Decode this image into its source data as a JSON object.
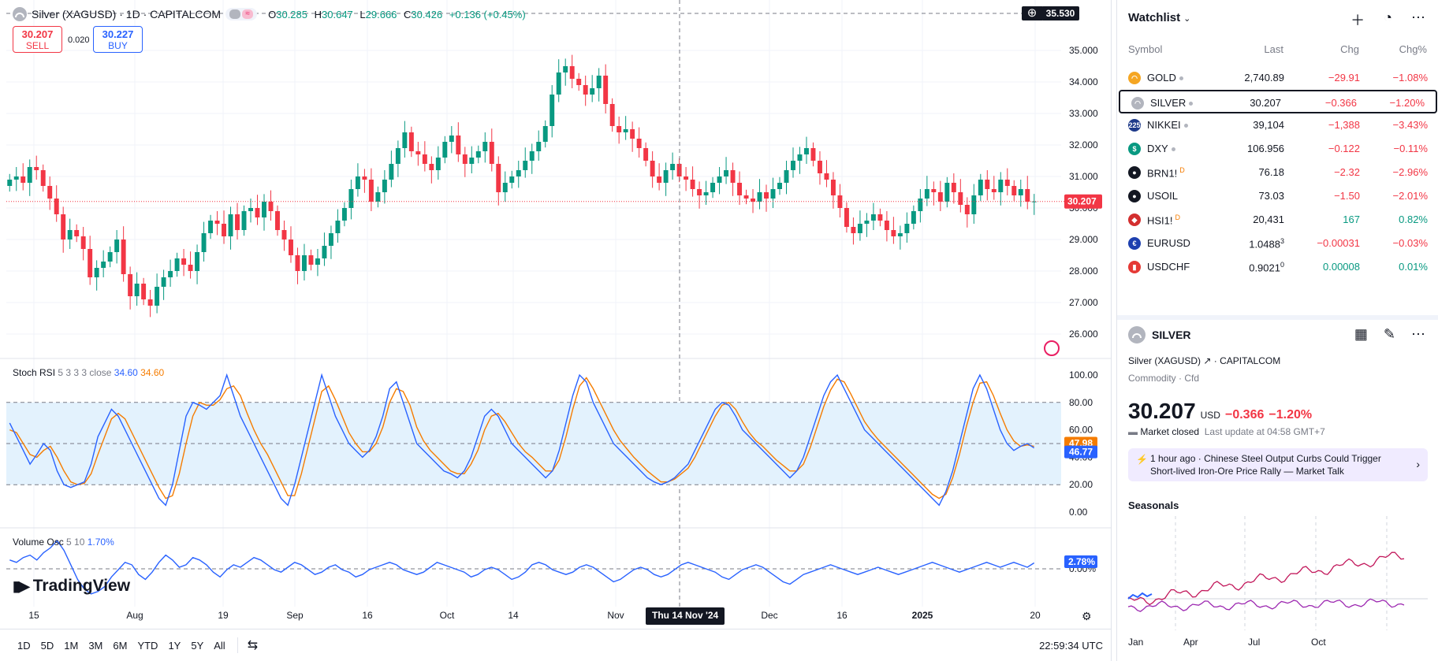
{
  "header": {
    "title": "Silver (XAGUSD) · 1D · CAPITALCOM",
    "ohlc": [
      {
        "k": "O",
        "v": "30.285"
      },
      {
        "k": "H",
        "v": "30.647"
      },
      {
        "k": "L",
        "v": "29.666"
      },
      {
        "k": "C",
        "v": "30.426"
      }
    ],
    "change": "+0.136 (+0.45%)"
  },
  "trade": {
    "sell_price": "30.207",
    "sell_label": "SELL",
    "spread": "0.020",
    "buy_price": "30.227",
    "buy_label": "BUY"
  },
  "price_axis": {
    "labels": [
      "35.000",
      "34.000",
      "33.000",
      "32.000",
      "31.000",
      "30.000",
      "29.000",
      "28.000",
      "27.000",
      "26.000"
    ],
    "current": "30.207",
    "crosshair": "35.530"
  },
  "stoch": {
    "name": "Stoch RSI",
    "params": "5 3 3 3 close",
    "k": "34.60",
    "d": "34.60",
    "axis": [
      "100.00",
      "80.00",
      "60.00",
      "40.00",
      "20.00",
      "0.00"
    ],
    "tag_d": "47.98",
    "tag_k": "46.77"
  },
  "vol": {
    "name": "Volume Osc",
    "params": "5 10",
    "value": "1.70%",
    "tag": "2.78%",
    "axis0": "0.00%"
  },
  "brand": "TradingView",
  "date_axis": [
    {
      "t": "15",
      "x": 43
    },
    {
      "t": "Aug",
      "x": 171
    },
    {
      "t": "19",
      "x": 283
    },
    {
      "t": "Sep",
      "x": 374
    },
    {
      "t": "16",
      "x": 466
    },
    {
      "t": "Oct",
      "x": 567
    },
    {
      "t": "14",
      "x": 651
    },
    {
      "t": "Nov",
      "x": 781
    },
    {
      "t": "Dec",
      "x": 976
    },
    {
      "t": "16",
      "x": 1068
    },
    {
      "t": "2025",
      "x": 1170,
      "bold": true
    },
    {
      "t": "20",
      "x": 1313
    }
  ],
  "crosshair_date": "Thu 14 Nov '24",
  "ranges": [
    "1D",
    "5D",
    "1M",
    "3M",
    "6M",
    "YTD",
    "1Y",
    "5Y",
    "All"
  ],
  "clock": "22:59:34 UTC",
  "watchlist": {
    "title": "Watchlist",
    "columns": {
      "symbol": "Symbol",
      "last": "Last",
      "chg": "Chg",
      "pct": "Chg%"
    },
    "rows": [
      {
        "sym": "GOLD",
        "last": "2,740.89",
        "chg": "−29.91",
        "pct": "−1.08%",
        "icon": "gold",
        "color": "#f5a623",
        "dir": "neg",
        "dot": true
      },
      {
        "sym": "SILVER",
        "last": "30.207",
        "chg": "−0.366",
        "pct": "−1.20%",
        "icon": "silver",
        "color": "#b2b5be",
        "dir": "neg",
        "dot": true,
        "sel": true
      },
      {
        "sym": "NIKKEI",
        "last": "39,104",
        "chg": "−1,388",
        "pct": "−3.43%",
        "icon": "225",
        "color": "#1e3a8a",
        "dir": "neg",
        "dot": true
      },
      {
        "sym": "DXY",
        "last": "106.956",
        "chg": "−0.122",
        "pct": "−0.11%",
        "icon": "$",
        "color": "#089981",
        "dir": "neg",
        "dot": true
      },
      {
        "sym": "BRN1!",
        "last": "76.18",
        "chg": "−2.32",
        "pct": "−2.96%",
        "icon": "oil",
        "color": "#131722",
        "dir": "neg",
        "d": "D"
      },
      {
        "sym": "USOIL",
        "last": "73.03",
        "chg": "−1.50",
        "pct": "−2.01%",
        "icon": "oil",
        "color": "#131722",
        "dir": "neg"
      },
      {
        "sym": "HSI1!",
        "last": "20,431",
        "chg": "167",
        "pct": "0.82%",
        "icon": "hk",
        "color": "#d32f2f",
        "dir": "pos",
        "d": "D"
      },
      {
        "sym": "EURUSD",
        "last": "1.0488",
        "last_sup": "3",
        "chg": "−0.00031",
        "pct": "−0.03%",
        "icon": "eu",
        "color": "#1e40af",
        "dir": "neg"
      },
      {
        "sym": "USDCHF",
        "last": "0.9021",
        "last_sup": "0",
        "chg": "0.00008",
        "pct": "0.01%",
        "icon": "us",
        "color": "#e53935",
        "dir": "pos",
        "last_pos": true
      }
    ]
  },
  "detail": {
    "symbol": "SILVER",
    "name": "Silver (XAGUSD)",
    "exchange": "CAPITALCOM",
    "type": "Commodity · Cfd",
    "price": "30.207",
    "currency": "USD",
    "change": "−0.366",
    "change_pct": "−1.20%",
    "status": "Market closed",
    "update": "Last update at 04:58 GMT+7",
    "news_time": "1 hour ago",
    "news_line1": "Chinese Steel Output Curbs Could Trigger",
    "news_line2": "Short-lived Iron-Ore Price Rally — Market Talk",
    "seasonals": "Seasonals",
    "season_months": [
      "Jan",
      "Apr",
      "Jul",
      "Oct"
    ]
  },
  "colors": {
    "up": "#089981",
    "down": "#f23645",
    "stoch_k": "#2962ff",
    "stoch_d": "#f57c00",
    "band": "#e3f2fd",
    "season1": "#c2185b",
    "season2": "#9c27b0",
    "season3": "#2962ff"
  },
  "chart_data": {
    "type": "candlestick",
    "closes": [
      30.9,
      31.0,
      30.8,
      31.3,
      31.2,
      30.7,
      30.3,
      29.8,
      29.0,
      29.3,
      29.1,
      28.7,
      27.8,
      28.1,
      28.3,
      28.6,
      29.0,
      27.9,
      27.2,
      27.6,
      27.1,
      26.9,
      27.5,
      27.8,
      28.0,
      28.4,
      28.2,
      28.0,
      28.6,
      29.2,
      29.6,
      29.5,
      29.1,
      29.8,
      29.3,
      29.9,
      30.0,
      29.7,
      30.2,
      29.9,
      29.3,
      29.0,
      28.5,
      28.0,
      28.5,
      28.2,
      28.4,
      28.8,
      29.2,
      29.6,
      30.0,
      30.6,
      31.0,
      30.9,
      30.2,
      30.5,
      30.9,
      31.4,
      31.9,
      32.4,
      31.8,
      31.7,
      31.4,
      31.2,
      31.6,
      32.1,
      32.3,
      31.7,
      31.4,
      31.6,
      31.8,
      32.1,
      31.4,
      30.5,
      30.8,
      31.0,
      31.2,
      31.5,
      31.8,
      32.1,
      32.6,
      33.6,
      34.3,
      34.5,
      34.1,
      33.9,
      33.6,
      33.8,
      34.2,
      33.3,
      32.6,
      32.4,
      32.5,
      32.2,
      31.9,
      31.5,
      31.0,
      30.8,
      31.2,
      31.4,
      31.0,
      30.9,
      30.6,
      30.4,
      30.5,
      30.8,
      31.0,
      31.2,
      30.8,
      30.4,
      30.3,
      30.2,
      30.5,
      30.3,
      30.6,
      30.8,
      31.2,
      31.5,
      31.7,
      31.9,
      31.5,
      31.1,
      30.9,
      30.4,
      30.0,
      29.4,
      29.2,
      29.5,
      29.6,
      29.8,
      29.6,
      29.3,
      29.1,
      29.2,
      29.5,
      29.9,
      30.3,
      30.6,
      30.5,
      30.2,
      30.8,
      30.5,
      30.1,
      29.8,
      30.4,
      30.9,
      30.6,
      30.5,
      30.9,
      30.7,
      30.4,
      30.6,
      30.2,
      30.207
    ],
    "price_range": [
      25.6,
      35.6
    ],
    "stoch_k": [
      65,
      55,
      45,
      35,
      42,
      50,
      45,
      30,
      20,
      18,
      20,
      22,
      35,
      55,
      65,
      75,
      70,
      60,
      50,
      40,
      30,
      20,
      10,
      5,
      20,
      45,
      70,
      80,
      78,
      75,
      80,
      85,
      100,
      85,
      70,
      60,
      50,
      40,
      30,
      20,
      10,
      5,
      20,
      40,
      60,
      80,
      100,
      85,
      70,
      60,
      50,
      45,
      40,
      45,
      55,
      70,
      90,
      95,
      80,
      65,
      50,
      45,
      40,
      35,
      30,
      28,
      25,
      30,
      40,
      55,
      70,
      75,
      70,
      60,
      50,
      45,
      40,
      35,
      30,
      25,
      30,
      45,
      65,
      85,
      100,
      95,
      80,
      70,
      60,
      50,
      45,
      40,
      35,
      30,
      25,
      22,
      20,
      22,
      25,
      30,
      35,
      45,
      55,
      65,
      75,
      80,
      78,
      70,
      60,
      55,
      50,
      45,
      40,
      35,
      30,
      25,
      30,
      40,
      55,
      70,
      85,
      95,
      100,
      90,
      80,
      70,
      60,
      55,
      50,
      45,
      40,
      35,
      30,
      25,
      20,
      15,
      10,
      5,
      15,
      30,
      50,
      70,
      90,
      100,
      90,
      75,
      60,
      50,
      45,
      48,
      50,
      46.77
    ],
    "stoch_d": [
      60,
      58,
      50,
      42,
      40,
      45,
      48,
      40,
      30,
      22,
      20,
      21,
      28,
      42,
      55,
      68,
      72,
      68,
      58,
      48,
      38,
      28,
      18,
      10,
      12,
      28,
      50,
      70,
      80,
      78,
      78,
      82,
      90,
      92,
      85,
      72,
      60,
      50,
      42,
      32,
      22,
      12,
      12,
      28,
      48,
      68,
      88,
      92,
      82,
      70,
      58,
      50,
      44,
      44,
      50,
      62,
      80,
      90,
      88,
      78,
      62,
      52,
      45,
      40,
      35,
      30,
      28,
      28,
      35,
      45,
      60,
      70,
      72,
      66,
      58,
      50,
      44,
      40,
      35,
      30,
      30,
      38,
      55,
      75,
      92,
      98,
      90,
      80,
      70,
      60,
      52,
      46,
      40,
      35,
      30,
      26,
      22,
      22,
      24,
      28,
      32,
      40,
      50,
      60,
      70,
      78,
      80,
      75,
      66,
      58,
      52,
      48,
      43,
      38,
      34,
      30,
      30,
      35,
      47,
      62,
      77,
      89,
      97,
      95,
      86,
      76,
      66,
      59,
      53,
      48,
      43,
      38,
      33,
      28,
      23,
      18,
      13,
      10,
      13,
      25,
      42,
      62,
      80,
      94,
      95,
      85,
      72,
      60,
      52,
      48,
      49,
      47.98
    ],
    "vol_osc": [
      4,
      3,
      5,
      6,
      4,
      7,
      9,
      12,
      8,
      2,
      -4,
      -8,
      -10,
      -9,
      -7,
      -3,
      0,
      3,
      2,
      -2,
      -4,
      -1,
      3,
      6,
      4,
      1,
      2,
      5,
      4,
      2,
      -1,
      -3,
      0,
      2,
      1,
      3,
      5,
      4,
      2,
      0,
      -1,
      1,
      3,
      2,
      0,
      -2,
      -1,
      1,
      2,
      0,
      -1,
      -3,
      -2,
      0,
      1,
      2,
      3,
      2,
      0,
      -1,
      -2,
      -1,
      1,
      3,
      2,
      1,
      0,
      -1,
      -3,
      -2,
      0,
      1,
      0,
      -2,
      -4,
      -3,
      -1,
      2,
      3,
      2,
      0,
      -1,
      -2,
      -1,
      1,
      2,
      1,
      -1,
      -3,
      -5,
      -4,
      -2,
      0,
      1,
      0,
      -2,
      -3,
      -2,
      0,
      2,
      3,
      2,
      1,
      0,
      -1,
      -3,
      -4,
      -2,
      0,
      1,
      2,
      1,
      -1,
      -3,
      -5,
      -6,
      -4,
      -2,
      -1,
      0,
      1,
      2,
      1,
      0,
      -1,
      -2,
      -1,
      0,
      1,
      0,
      -1,
      -2,
      -1,
      0,
      1,
      2,
      3,
      2,
      1,
      0,
      -1,
      0,
      1,
      2,
      3,
      2,
      1,
      2,
      3,
      2,
      1,
      2.78
    ]
  }
}
